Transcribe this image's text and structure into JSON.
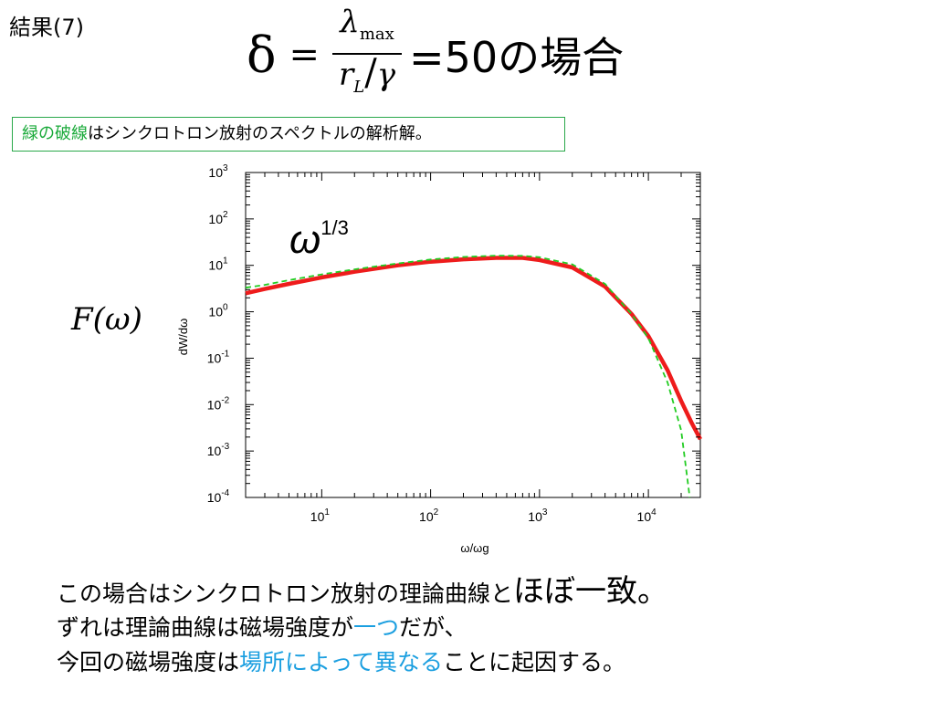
{
  "slide": {
    "title": "結果(7)",
    "formula": {
      "lhs": "δ",
      "equals": "=",
      "numerator": "λ",
      "numerator_sub": "max",
      "denominator_left": "r",
      "denominator_sub": "L",
      "denominator_slash": "/",
      "denominator_right": "γ",
      "result": "=50の場合"
    },
    "legend_note": {
      "highlight": "緑の破線",
      "rest": "はシンクロトロン放射のスペクトルの解析解。"
    },
    "f_label": "F(ω)",
    "body": {
      "line1_a": "この場合はシンクロトロン放射の理論曲線と",
      "line1_b": "ほぼ一致。",
      "line2_a": "ずれは理論曲線は磁場強度が",
      "line2_b": "一つ",
      "line2_c": "だが、",
      "line3_a": "今回の磁場強度は",
      "line3_b": "場所によって異なる",
      "line3_c": "ことに起因する。"
    }
  },
  "chart_data": {
    "type": "line",
    "xscale": "log",
    "yscale": "log",
    "xlim": [
      2,
      30000
    ],
    "ylim": [
      0.0001,
      1000
    ],
    "xlabel": "ω/ωg",
    "ylabel": "dW/dω",
    "xticks": [
      {
        "value": 10,
        "base": "10",
        "exp": "1"
      },
      {
        "value": 100,
        "base": "10",
        "exp": "2"
      },
      {
        "value": 1000,
        "base": "10",
        "exp": "3"
      },
      {
        "value": 10000,
        "base": "10",
        "exp": "4"
      }
    ],
    "yticks": [
      {
        "value": 1000,
        "base": "10",
        "exp": "3"
      },
      {
        "value": 100,
        "base": "10",
        "exp": "2"
      },
      {
        "value": 10,
        "base": "10",
        "exp": "1"
      },
      {
        "value": 1,
        "base": "10",
        "exp": "0"
      },
      {
        "value": 0.1,
        "base": "10",
        "exp": "-1"
      },
      {
        "value": 0.01,
        "base": "10",
        "exp": "-2"
      },
      {
        "value": 0.001,
        "base": "10",
        "exp": "-3"
      },
      {
        "value": 0.0001,
        "base": "10",
        "exp": "-4"
      }
    ],
    "annotation": {
      "base": "ω",
      "exp": "1/3"
    },
    "grid": false,
    "legend": "none",
    "series": [
      {
        "color": "#ee1c1c",
        "style": "solid",
        "x": [
          2,
          3,
          5,
          10,
          20,
          50,
          100,
          200,
          400,
          700,
          1000,
          2000,
          4000,
          7000,
          10000,
          15000,
          20000,
          25000,
          30000
        ],
        "y": [
          2.5,
          3.1,
          4.0,
          5.5,
          7.3,
          10.0,
          12.0,
          13.5,
          14.5,
          14.5,
          13.0,
          9.0,
          3.5,
          0.9,
          0.3,
          0.055,
          0.012,
          0.004,
          0.0018
        ]
      },
      {
        "color": "#22cc22",
        "style": "dashed",
        "x": [
          2,
          3,
          5,
          10,
          20,
          50,
          100,
          200,
          400,
          700,
          1000,
          2000,
          4000,
          7000,
          10000,
          15000,
          20000,
          24000
        ],
        "y": [
          3.3,
          3.8,
          4.8,
          6.4,
          8.2,
          11.0,
          13.4,
          15.2,
          16.2,
          16.0,
          15.0,
          10.5,
          4.0,
          0.9,
          0.27,
          0.03,
          0.0028,
          0.0001
        ]
      }
    ]
  }
}
